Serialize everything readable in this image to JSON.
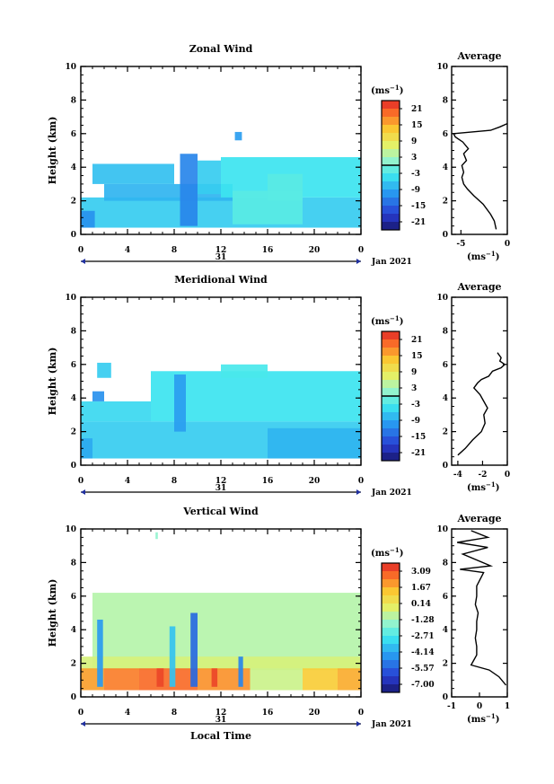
{
  "chart_data": [
    {
      "type": "heatmap",
      "title": "Zonal Wind",
      "ylabel": "Height (km)",
      "xlabel": "",
      "xlim": [
        0,
        24
      ],
      "ylim": [
        0,
        10
      ],
      "xticks": [
        "0",
        "4",
        "8",
        "12",
        "16",
        "20",
        "0"
      ],
      "yticks": [
        "0",
        "2",
        "4",
        "6",
        "8",
        "10"
      ],
      "date_label": "31",
      "month_label": "Jan 2021",
      "colorbar": {
        "unit": "(ms",
        "unit_sup": "−1",
        "unit_close": ")",
        "ticks": [
          "21",
          "15",
          "9",
          "3",
          "-3",
          "-9",
          "-15",
          "-21"
        ],
        "min": -24,
        "max": 24,
        "marker": 0
      },
      "regions": [
        {
          "x0": 0.0,
          "x1": 24.0,
          "y0": 0.4,
          "y1": 2.2,
          "v": -6
        },
        {
          "x0": 2.0,
          "x1": 13.0,
          "y0": 2.0,
          "y1": 3.0,
          "v": -8
        },
        {
          "x0": 1.0,
          "x1": 8.0,
          "y0": 3.0,
          "y1": 4.2,
          "v": -7
        },
        {
          "x0": 8.5,
          "x1": 10.0,
          "y0": 0.5,
          "y1": 4.8,
          "v": -12
        },
        {
          "x0": 10.0,
          "x1": 12.0,
          "y0": 2.4,
          "y1": 4.4,
          "v": -6
        },
        {
          "x0": 12.0,
          "x1": 24.0,
          "y0": 2.2,
          "y1": 4.6,
          "v": -4
        },
        {
          "x0": 13.0,
          "x1": 19.0,
          "y0": 0.6,
          "y1": 2.6,
          "v": -2
        },
        {
          "x0": 13.2,
          "x1": 13.8,
          "y0": 5.6,
          "y1": 6.1,
          "v": -10
        },
        {
          "x0": 0.0,
          "x1": 1.2,
          "y0": 0.4,
          "y1": 1.4,
          "v": -11
        },
        {
          "x0": 16.0,
          "x1": 19.0,
          "y0": 2.0,
          "y1": 3.6,
          "v": -2
        }
      ],
      "average_panel": {
        "title": "Average",
        "xlim": [
          -6,
          0
        ],
        "xticks": [
          "-5",
          "0"
        ],
        "xlabel": "(ms",
        "xlabel_sup": "−1",
        "xlabel_close": ")",
        "x": [
          -1.2,
          -1.4,
          -1.8,
          -2.6,
          -3.6,
          -4.3,
          -4.7,
          -4.9,
          -4.7,
          -4.9,
          -4.4,
          -4.7,
          -4.2,
          -4.8,
          -5.6,
          -5.8,
          -1.8,
          -0.8,
          0.0
        ],
        "y": [
          0.3,
          0.8,
          1.2,
          1.8,
          2.3,
          2.7,
          3.0,
          3.4,
          3.7,
          4.1,
          4.4,
          4.8,
          5.1,
          5.5,
          5.8,
          6.0,
          6.2,
          6.4,
          6.6
        ]
      }
    },
    {
      "type": "heatmap",
      "title": "Meridional Wind",
      "ylabel": "Height (km)",
      "xlabel": "",
      "xlim": [
        0,
        24
      ],
      "ylim": [
        0,
        10
      ],
      "xticks": [
        "0",
        "4",
        "8",
        "12",
        "16",
        "20",
        "0"
      ],
      "yticks": [
        "0",
        "2",
        "4",
        "6",
        "8",
        "10"
      ],
      "date_label": "31",
      "month_label": "Jan 2021",
      "colorbar": {
        "unit": "(ms",
        "unit_sup": "−1",
        "unit_close": ")",
        "ticks": [
          "21",
          "15",
          "9",
          "3",
          "-3",
          "-9",
          "-15",
          "-21"
        ],
        "min": -24,
        "max": 24,
        "marker": 0
      },
      "regions": [
        {
          "x0": 0.0,
          "x1": 24.0,
          "y0": 0.4,
          "y1": 2.6,
          "v": -6
        },
        {
          "x0": 0.0,
          "x1": 6.0,
          "y0": 2.6,
          "y1": 3.8,
          "v": -5
        },
        {
          "x0": 1.4,
          "x1": 2.6,
          "y0": 5.2,
          "y1": 6.1,
          "v": -6
        },
        {
          "x0": 6.0,
          "x1": 24.0,
          "y0": 2.6,
          "y1": 5.6,
          "v": -4
        },
        {
          "x0": 8.0,
          "x1": 9.0,
          "y0": 2.0,
          "y1": 5.4,
          "v": -10
        },
        {
          "x0": 1.0,
          "x1": 2.0,
          "y0": 3.8,
          "y1": 4.4,
          "v": -11
        },
        {
          "x0": 16.0,
          "x1": 24.0,
          "y0": 0.4,
          "y1": 2.2,
          "v": -8
        },
        {
          "x0": 12.0,
          "x1": 16.0,
          "y0": 5.2,
          "y1": 6.0,
          "v": -3
        },
        {
          "x0": 0.0,
          "x1": 1.0,
          "y0": 0.4,
          "y1": 1.6,
          "v": -9
        }
      ],
      "average_panel": {
        "title": "Average",
        "xlim": [
          -4.5,
          0
        ],
        "xticks": [
          "-4",
          "-2",
          "0"
        ],
        "xlabel": "(ms",
        "xlabel_sup": "−1",
        "xlabel_close": ")",
        "x": [
          -4.0,
          -3.4,
          -2.8,
          -2.1,
          -1.8,
          -1.9,
          -1.6,
          -1.9,
          -2.2,
          -2.7,
          -2.4,
          -2.1,
          -1.5,
          -1.2,
          -0.5,
          -0.2,
          -0.6,
          -0.5,
          -0.8
        ],
        "y": [
          0.6,
          1.0,
          1.5,
          2.0,
          2.5,
          3.0,
          3.4,
          3.8,
          4.2,
          4.6,
          4.9,
          5.1,
          5.3,
          5.6,
          5.8,
          6.0,
          6.2,
          6.4,
          6.7
        ]
      }
    },
    {
      "type": "heatmap",
      "title": "Vertical Wind",
      "ylabel": "Height (km)",
      "xlabel": "Local Time",
      "xlim": [
        0,
        24
      ],
      "ylim": [
        0,
        10
      ],
      "xticks": [
        "0",
        "4",
        "8",
        "12",
        "16",
        "20",
        "0"
      ],
      "yticks": [
        "0",
        "2",
        "4",
        "6",
        "8",
        "10"
      ],
      "date_label": "31",
      "month_label": "Jan 2021",
      "colorbar": {
        "unit": "(ms",
        "unit_sup": "−1",
        "unit_close": ")",
        "ticks": [
          "3.09",
          "1.67",
          "0.14",
          "-1.28",
          "-2.71",
          "-4.14",
          "-5.57",
          "-7.00"
        ],
        "min": -7.7,
        "max": 3.8,
        "marker": null
      },
      "regions": [
        {
          "x0": 1.0,
          "x1": 24.0,
          "y0": 1.6,
          "y1": 6.2,
          "v": -1.0
        },
        {
          "x0": 0.0,
          "x1": 24.0,
          "y0": 1.6,
          "y1": 2.4,
          "v": -0.4
        },
        {
          "x0": 0.0,
          "x1": 2.0,
          "y0": 0.4,
          "y1": 1.7,
          "v": 1.9
        },
        {
          "x0": 2.0,
          "x1": 5.0,
          "y0": 0.4,
          "y1": 1.7,
          "v": 2.4
        },
        {
          "x0": 5.0,
          "x1": 10.0,
          "y0": 0.4,
          "y1": 1.7,
          "v": 2.7
        },
        {
          "x0": 10.0,
          "x1": 14.5,
          "y0": 0.4,
          "y1": 1.7,
          "v": 2.1
        },
        {
          "x0": 14.5,
          "x1": 19.0,
          "y0": 0.4,
          "y1": 1.7,
          "v": -0.6
        },
        {
          "x0": 19.0,
          "x1": 22.0,
          "y0": 0.4,
          "y1": 1.7,
          "v": 1.1
        },
        {
          "x0": 22.0,
          "x1": 24.0,
          "y0": 0.4,
          "y1": 1.7,
          "v": 1.7
        },
        {
          "x0": 1.4,
          "x1": 1.9,
          "y0": 0.6,
          "y1": 4.6,
          "v": -4.4
        },
        {
          "x0": 7.6,
          "x1": 8.1,
          "y0": 0.6,
          "y1": 4.2,
          "v": -3.6
        },
        {
          "x0": 9.4,
          "x1": 10.0,
          "y0": 0.6,
          "y1": 5.0,
          "v": -5.4
        },
        {
          "x0": 13.5,
          "x1": 13.9,
          "y0": 0.6,
          "y1": 2.4,
          "v": -4.8
        },
        {
          "x0": 6.5,
          "x1": 7.1,
          "y0": 0.6,
          "y1": 1.7,
          "v": 3.3
        },
        {
          "x0": 11.2,
          "x1": 11.7,
          "y0": 0.6,
          "y1": 1.7,
          "v": 3.3
        },
        {
          "x0": 6.4,
          "x1": 6.6,
          "y0": 9.4,
          "y1": 9.8,
          "v": -1.6
        }
      ],
      "average_panel": {
        "title": "Average",
        "xlim": [
          -1,
          1
        ],
        "xticks": [
          "-1",
          "0",
          "1"
        ],
        "xlabel": "(ms",
        "xlabel_sup": "−1",
        "xlabel_close": ")",
        "x": [
          0.95,
          0.7,
          0.35,
          -0.3,
          -0.1,
          -0.1,
          -0.15,
          -0.1,
          -0.1,
          -0.05,
          -0.15,
          -0.1,
          -0.1,
          0.15,
          -0.7,
          0.4,
          -0.6,
          0.3,
          -0.8,
          0.3,
          -0.3
        ],
        "y": [
          0.7,
          1.2,
          1.6,
          1.9,
          2.5,
          3.0,
          3.5,
          4.0,
          4.5,
          5.0,
          5.5,
          6.0,
          6.6,
          7.4,
          7.6,
          7.8,
          8.5,
          8.9,
          9.2,
          9.5,
          9.9
        ]
      }
    }
  ]
}
